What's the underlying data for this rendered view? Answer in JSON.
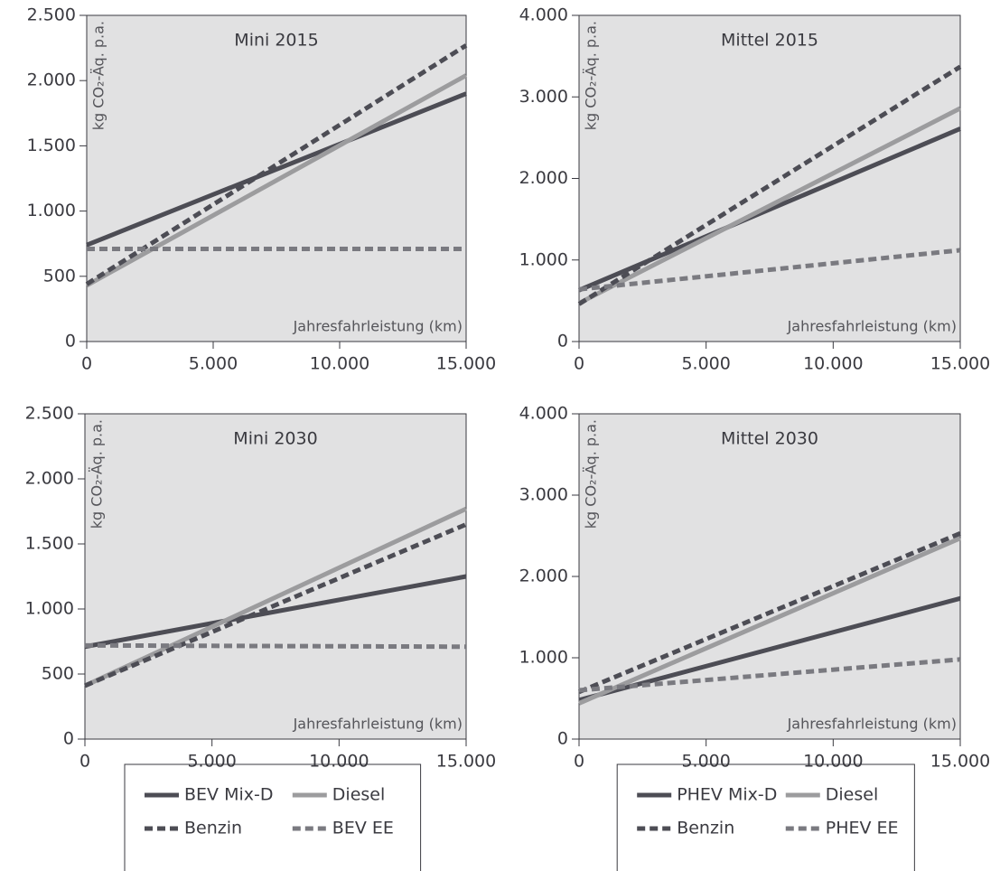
{
  "chart_data": [
    {
      "type": "line",
      "title": "Mini 2015",
      "x_label": "Jahresfahrleistung (km)",
      "y_label": "kg CO₂-Äq. p.a.",
      "legend": "bottom",
      "x": [
        0,
        15000
      ],
      "xlim": [
        0,
        15000
      ],
      "xticks": [
        0,
        {
          "value": 5000,
          "label": "5.000"
        },
        {
          "value": 10000,
          "label": "10.000"
        },
        {
          "value": 15000,
          "label": "15.000"
        }
      ],
      "ylim": [
        0,
        2500
      ],
      "yticks": [
        0,
        {
          "value": 500,
          "label": "500"
        },
        {
          "value": 1000,
          "label": "1.000"
        },
        {
          "value": 1500,
          "label": "1.500"
        },
        {
          "value": 2000,
          "label": "2.000"
        },
        {
          "value": 2500,
          "label": "2.500"
        }
      ],
      "series": [
        {
          "name": "BEV Mix-D",
          "color": "#4d4d55",
          "dashed": false,
          "values": [
            740,
            1900
          ]
        },
        {
          "name": "Diesel",
          "color": "#9c9c9e",
          "dashed": false,
          "values": [
            430,
            2040
          ]
        },
        {
          "name": "Benzin",
          "color": "#4d4d55",
          "dashed": true,
          "values": [
            440,
            2270
          ]
        },
        {
          "name": "BEV EE",
          "color": "#7a7a80",
          "dashed": true,
          "values": [
            710,
            710
          ]
        }
      ]
    },
    {
      "type": "line",
      "title": "Mittel 2015",
      "x_label": "Jahresfahrleistung (km)",
      "y_label": "kg CO₂-Äq. p.a.",
      "legend": "bottom",
      "x": [
        0,
        15000
      ],
      "xlim": [
        0,
        15000
      ],
      "xticks": [
        0,
        {
          "value": 5000,
          "label": "5.000"
        },
        {
          "value": 10000,
          "label": "10.000"
        },
        {
          "value": 15000,
          "label": "15.000"
        }
      ],
      "ylim": [
        0,
        4000
      ],
      "yticks": [
        0,
        {
          "value": 1000,
          "label": "1.000"
        },
        {
          "value": 2000,
          "label": "2.000"
        },
        {
          "value": 3000,
          "label": "3.000"
        },
        {
          "value": 4000,
          "label": "4.000"
        }
      ],
      "series": [
        {
          "name": "PHEV Mix-D",
          "color": "#4d4d55",
          "dashed": false,
          "values": [
            630,
            2610
          ]
        },
        {
          "name": "Diesel",
          "color": "#9c9c9e",
          "dashed": false,
          "values": [
            470,
            2860
          ]
        },
        {
          "name": "Benzin",
          "color": "#4d4d55",
          "dashed": true,
          "values": [
            460,
            3370
          ]
        },
        {
          "name": "PHEV EE",
          "color": "#7a7a80",
          "dashed": true,
          "values": [
            640,
            1120
          ]
        }
      ]
    },
    {
      "type": "line",
      "title": "Mini 2030",
      "x_label": "Jahresfahrleistung (km)",
      "y_label": "kg CO₂-Äq. p.a.",
      "x": [
        0,
        15000
      ],
      "xlim": [
        0,
        15000
      ],
      "xticks": [
        0,
        {
          "value": 5000,
          "label": "5.000"
        },
        {
          "value": 10000,
          "label": "10.000"
        },
        {
          "value": 15000,
          "label": "15.000"
        }
      ],
      "ylim": [
        0,
        2500
      ],
      "yticks": [
        0,
        {
          "value": 500,
          "label": "500"
        },
        {
          "value": 1000,
          "label": "1.000"
        },
        {
          "value": 1500,
          "label": "1.500"
        },
        {
          "value": 2000,
          "label": "2.000"
        },
        {
          "value": 2500,
          "label": "2.500"
        }
      ],
      "series": [
        {
          "color": "#4d4d55",
          "dashed": false,
          "values": [
            710,
            1250
          ]
        },
        {
          "color": "#9c9c9e",
          "dashed": false,
          "values": [
            410,
            1770
          ]
        },
        {
          "color": "#4d4d55",
          "dashed": true,
          "values": [
            410,
            1650
          ]
        },
        {
          "color": "#7a7a80",
          "dashed": true,
          "values": [
            720,
            710
          ]
        }
      ]
    },
    {
      "type": "line",
      "title": "Mittel 2030",
      "x_label": "Jahresfahrleistung (km)",
      "y_label": "kg CO₂-Äq. p.a.",
      "x": [
        0,
        15000
      ],
      "xlim": [
        0,
        15000
      ],
      "xticks": [
        0,
        {
          "value": 5000,
          "label": "5.000"
        },
        {
          "value": 10000,
          "label": "10.000"
        },
        {
          "value": 15000,
          "label": "15.000"
        }
      ],
      "ylim": [
        0,
        4000
      ],
      "yticks": [
        0,
        {
          "value": 1000,
          "label": "1.000"
        },
        {
          "value": 2000,
          "label": "2.000"
        },
        {
          "value": 3000,
          "label": "3.000"
        },
        {
          "value": 4000,
          "label": "4.000"
        }
      ],
      "series": [
        {
          "color": "#4d4d55",
          "dashed": false,
          "values": [
            480,
            1730
          ]
        },
        {
          "color": "#9c9c9e",
          "dashed": false,
          "values": [
            440,
            2470
          ]
        },
        {
          "color": "#4d4d55",
          "dashed": true,
          "values": [
            580,
            2530
          ]
        },
        {
          "color": "#7a7a80",
          "dashed": true,
          "values": [
            600,
            980
          ]
        }
      ]
    }
  ]
}
